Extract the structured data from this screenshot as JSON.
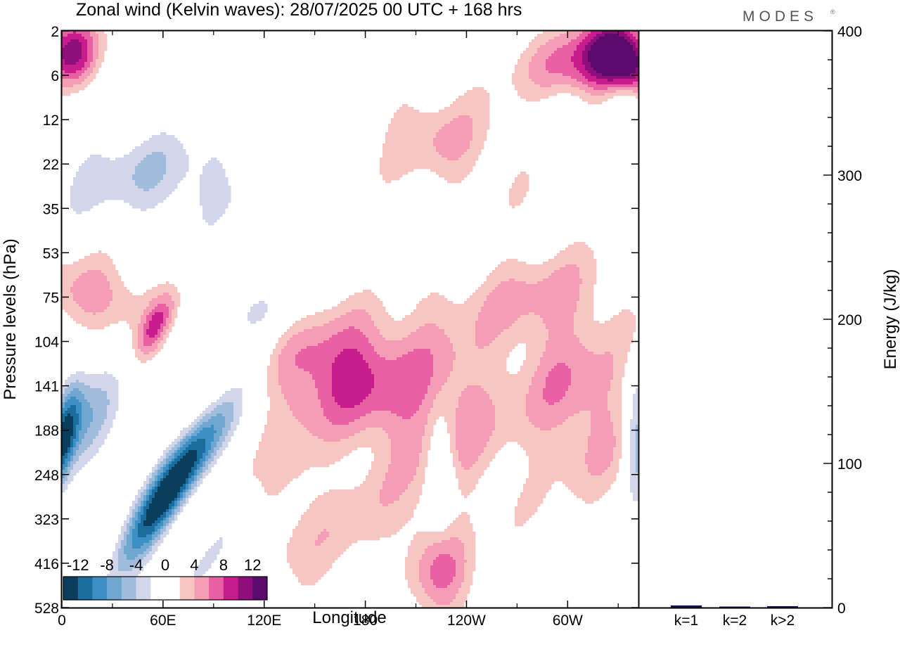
{
  "header": {
    "title": "Zonal wind (Kelvin waves):  28/07/2025  00 UTC  + 168 hrs",
    "brand": "MODES",
    "brand_mark": "®"
  },
  "chart_data": [
    {
      "type": "heatmap",
      "title": "Zonal wind (Kelvin waves):  28/07/2025  00 UTC  + 168 hrs",
      "xlabel": "Longitude",
      "ylabel": "Pressure levels (hPa)",
      "x_ticks": [
        "0",
        "60E",
        "120E",
        "180",
        "120W",
        "60W"
      ],
      "x_range": [
        0,
        342
      ],
      "y_ticks": [
        "2",
        "6",
        "12",
        "22",
        "35",
        "53",
        "75",
        "104",
        "141",
        "188",
        "248",
        "323",
        "416",
        "528"
      ],
      "colorbar": {
        "levels": [
          -14,
          -12,
          -10,
          -8,
          -6,
          -4,
          -2,
          2,
          4,
          6,
          8,
          10,
          12,
          14
        ],
        "labels": [
          "-12",
          "-8",
          "-4",
          "0",
          "4",
          "8",
          "12"
        ],
        "colors": [
          "#0c3d5c",
          "#1a6e9e",
          "#3b8fc4",
          "#6fa7d1",
          "#a0bcdc",
          "#d2d6ea",
          "#ffffff",
          "#ffffff",
          "#f8c6c2",
          "#f59cb6",
          "#e85fa3",
          "#c81c8c",
          "#8e0e7c",
          "#5a0a6a"
        ]
      },
      "features": [
        {
          "name": "deep-easterly-core",
          "lon": 65,
          "lev": 10.3,
          "value": -17,
          "wlon": 10,
          "wlev": 1.4,
          "tilt": -0.65
        },
        {
          "name": "easterly-tail-lower",
          "lon": 78,
          "lev": 12.4,
          "value": -3.5,
          "wlon": 6,
          "wlev": 1.3,
          "tilt": -0.7
        },
        {
          "name": "easterly-west-edge",
          "lon": 8,
          "lev": 8.9,
          "value": -8,
          "wlon": 16,
          "wlev": 1.1,
          "tilt": -0.3
        },
        {
          "name": "easterly-west-surface",
          "lon": 1,
          "lev": 9.3,
          "value": -9,
          "wlon": 5,
          "wlev": 0.9,
          "tilt": -0.2
        },
        {
          "name": "easterly-above-jet",
          "lon": 120,
          "lev": 6.4,
          "value": -3.5,
          "wlon": 28,
          "wlev": 0.5,
          "tilt": -0.2
        },
        {
          "name": "easterly-mid-level",
          "lon": 200,
          "lev": 5.3,
          "value": -3,
          "wlon": 40,
          "wlev": 0.6,
          "tilt": 0.05
        },
        {
          "name": "easterly-upper-band",
          "lon": 55,
          "lev": 3.3,
          "value": -5.5,
          "wlon": 55,
          "wlev": 0.9,
          "tilt": 0.22
        },
        {
          "name": "easterly-top-band",
          "lon": 300,
          "lev": 1.4,
          "value": -6,
          "wlon": 22,
          "wlev": 0.6,
          "tilt": 0.3
        },
        {
          "name": "easterly-top-east",
          "lon": 333,
          "lev": 1.6,
          "value": -8,
          "wlon": 10,
          "wlev": 0.6,
          "tilt": 0.2
        },
        {
          "name": "easterly-isolated-lower",
          "lon": 225,
          "lev": 9.9,
          "value": -6,
          "wlon": 6,
          "wlev": 0.9,
          "tilt": 0
        },
        {
          "name": "easterly-east-surface",
          "lon": 341,
          "lev": 9.2,
          "value": -8,
          "wlon": 5,
          "wlev": 1.1,
          "tilt": 0
        },
        {
          "name": "westerly-upper-ridge",
          "lon": 310,
          "lev": 1.1,
          "value": 11,
          "wlon": 30,
          "wlev": 0.65,
          "tilt": 0.3
        },
        {
          "name": "westerly-upper-core",
          "lon": 330,
          "lev": 0.6,
          "value": 14,
          "wlon": 14,
          "wlev": 0.55,
          "tilt": 0.25
        },
        {
          "name": "westerly-top-west",
          "lon": 6,
          "lev": 0.5,
          "value": 10,
          "wlon": 12,
          "wlev": 0.55,
          "tilt": 0
        },
        {
          "name": "westerly-west-lower",
          "lon": 20,
          "lev": 6.0,
          "value": 5.5,
          "wlon": 24,
          "wlev": 0.6,
          "tilt": 0.2
        },
        {
          "name": "westerly-small-cell",
          "lon": 55,
          "lev": 6.7,
          "value": 7,
          "wlon": 6,
          "wlev": 0.5,
          "tilt": -0.4
        },
        {
          "name": "westerly-date-line",
          "lon": 165,
          "lev": 7.6,
          "value": 8.5,
          "wlon": 25,
          "wlev": 1.0,
          "tilt": 0.12
        },
        {
          "name": "westerly-central",
          "lon": 225,
          "lev": 8.5,
          "value": 5.5,
          "wlon": 28,
          "wlev": 1.5,
          "tilt": 0.1
        },
        {
          "name": "westerly-east",
          "lon": 305,
          "lev": 8.2,
          "value": 5.5,
          "wlon": 24,
          "wlev": 1.5,
          "tilt": 0.15
        },
        {
          "name": "westerly-mid-east",
          "lon": 265,
          "lev": 5.8,
          "value": 3.5,
          "wlon": 45,
          "wlev": 0.7,
          "tilt": 0.15
        },
        {
          "name": "westerly-low-west",
          "lon": 135,
          "lev": 10.0,
          "value": 3,
          "wlon": 14,
          "wlev": 1.6,
          "tilt": -0.05
        },
        {
          "name": "westerly-near-surface",
          "lon": 225,
          "lev": 12.2,
          "value": 5.5,
          "wlon": 15,
          "wlev": 0.9,
          "tilt": 0.25
        },
        {
          "name": "westerly-low-east",
          "lon": 170,
          "lev": 11.3,
          "value": 3,
          "wlon": 15,
          "wlev": 1.2,
          "tilt": -0.4
        },
        {
          "name": "westerly-upper-mid",
          "lon": 225,
          "lev": 2.5,
          "value": 4,
          "wlon": 28,
          "wlev": 0.8,
          "tilt": 0.35
        }
      ]
    },
    {
      "type": "bar",
      "categories": [
        "k=1",
        "k=2",
        "k>2"
      ],
      "values": [
        1.5,
        0.5,
        1.0
      ],
      "ylabel": "Energy (J/kg)",
      "ylim": [
        0,
        400
      ],
      "y_ticks": [
        "0",
        "100",
        "200",
        "300",
        "400"
      ],
      "bar_color": "#101055"
    }
  ]
}
